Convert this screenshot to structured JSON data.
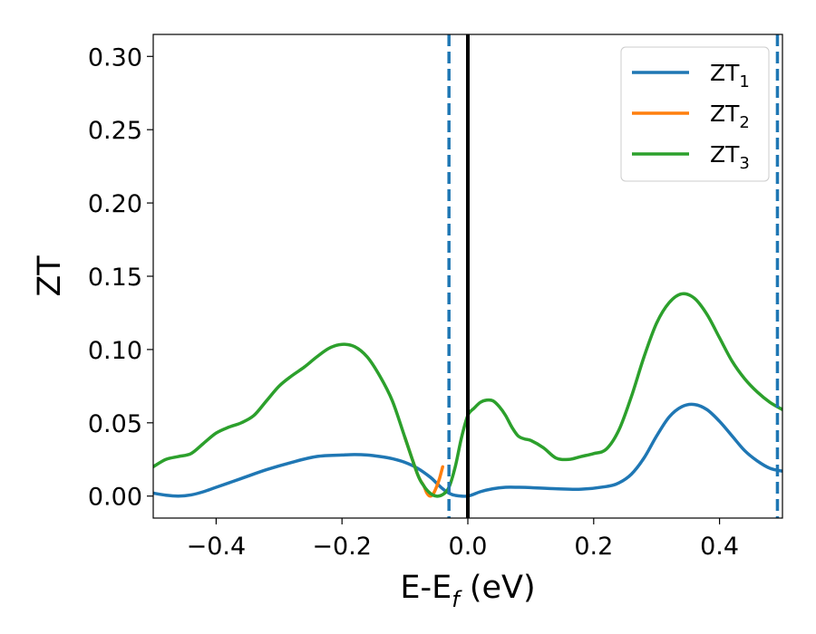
{
  "chart_data": {
    "type": "line",
    "xlabel": {
      "main": "E-E",
      "sub": "f",
      "tail": " (eV)"
    },
    "ylabel": "ZT",
    "xlim": [
      -0.5,
      0.5
    ],
    "ylim": [
      -0.015,
      0.315
    ],
    "xticks": [
      -0.4,
      -0.2,
      0.0,
      0.2,
      0.4
    ],
    "xtick_labels": [
      "−0.4",
      "−0.2",
      "0.0",
      "0.2",
      "0.4"
    ],
    "yticks": [
      0.0,
      0.05,
      0.1,
      0.15,
      0.2,
      0.25,
      0.3
    ],
    "ytick_labels": [
      "0.00",
      "0.05",
      "0.10",
      "0.15",
      "0.20",
      "0.25",
      "0.30"
    ],
    "grid": false,
    "legend_position": "top-right",
    "vlines": [
      {
        "x": -0.03,
        "style": "dashed",
        "color": "#1f77b4"
      },
      {
        "x": 0.0,
        "style": "solid",
        "color": "#000000"
      },
      {
        "x": 0.492,
        "style": "dashed",
        "color": "#1f77b4"
      }
    ],
    "series": [
      {
        "name": "ZT",
        "subscript": "1",
        "color": "#1f77b4",
        "x": [
          -0.5,
          -0.48,
          -0.46,
          -0.44,
          -0.42,
          -0.4,
          -0.36,
          -0.32,
          -0.28,
          -0.24,
          -0.2,
          -0.18,
          -0.16,
          -0.14,
          -0.12,
          -0.1,
          -0.08,
          -0.06,
          -0.05,
          -0.04,
          -0.03,
          -0.02,
          0.0,
          0.02,
          0.04,
          0.06,
          0.08,
          0.1,
          0.14,
          0.18,
          0.22,
          0.24,
          0.26,
          0.28,
          0.3,
          0.32,
          0.34,
          0.36,
          0.38,
          0.4,
          0.42,
          0.44,
          0.46,
          0.48,
          0.5
        ],
        "y": [
          0.002,
          0.0006,
          0.0,
          0.0008,
          0.003,
          0.006,
          0.012,
          0.018,
          0.023,
          0.027,
          0.028,
          0.0283,
          0.028,
          0.027,
          0.0255,
          0.023,
          0.019,
          0.013,
          0.009,
          0.005,
          0.002,
          0.0005,
          0.0,
          0.003,
          0.005,
          0.006,
          0.006,
          0.0058,
          0.005,
          0.0047,
          0.0065,
          0.009,
          0.015,
          0.026,
          0.041,
          0.054,
          0.061,
          0.0625,
          0.059,
          0.051,
          0.041,
          0.031,
          0.024,
          0.019,
          0.017
        ]
      },
      {
        "name": "ZT",
        "subscript": "2",
        "color": "#ff7f0e",
        "x": [
          -0.1,
          -0.08,
          -0.07,
          -0.065,
          -0.06,
          -0.055,
          -0.05,
          -0.045,
          -0.04
        ],
        "y": [
          0.04,
          0.015,
          0.007,
          0.002,
          0.0,
          0.0015,
          0.006,
          0.012,
          0.02
        ]
      },
      {
        "name": "ZT",
        "subscript": "3",
        "color": "#2ca02c",
        "x": [
          -0.5,
          -0.48,
          -0.46,
          -0.44,
          -0.42,
          -0.4,
          -0.38,
          -0.36,
          -0.34,
          -0.32,
          -0.3,
          -0.28,
          -0.26,
          -0.24,
          -0.22,
          -0.2,
          -0.18,
          -0.16,
          -0.14,
          -0.12,
          -0.1,
          -0.08,
          -0.07,
          -0.06,
          -0.05,
          -0.04,
          -0.03,
          -0.02,
          -0.01,
          0.0,
          0.01,
          0.02,
          0.03,
          0.04,
          0.05,
          0.06,
          0.07,
          0.08,
          0.09,
          0.1,
          0.12,
          0.14,
          0.16,
          0.18,
          0.2,
          0.22,
          0.24,
          0.26,
          0.28,
          0.3,
          0.32,
          0.34,
          0.36,
          0.38,
          0.4,
          0.42,
          0.44,
          0.46,
          0.48,
          0.5
        ],
        "y": [
          0.02,
          0.025,
          0.027,
          0.029,
          0.036,
          0.043,
          0.047,
          0.05,
          0.055,
          0.065,
          0.075,
          0.082,
          0.088,
          0.095,
          0.101,
          0.1035,
          0.102,
          0.095,
          0.082,
          0.065,
          0.04,
          0.015,
          0.007,
          0.002,
          0.0,
          0.001,
          0.006,
          0.02,
          0.04,
          0.055,
          0.06,
          0.064,
          0.0655,
          0.065,
          0.061,
          0.055,
          0.047,
          0.041,
          0.039,
          0.038,
          0.033,
          0.026,
          0.025,
          0.027,
          0.029,
          0.032,
          0.045,
          0.068,
          0.095,
          0.118,
          0.132,
          0.138,
          0.135,
          0.124,
          0.108,
          0.092,
          0.08,
          0.071,
          0.064,
          0.059
        ]
      }
    ]
  }
}
